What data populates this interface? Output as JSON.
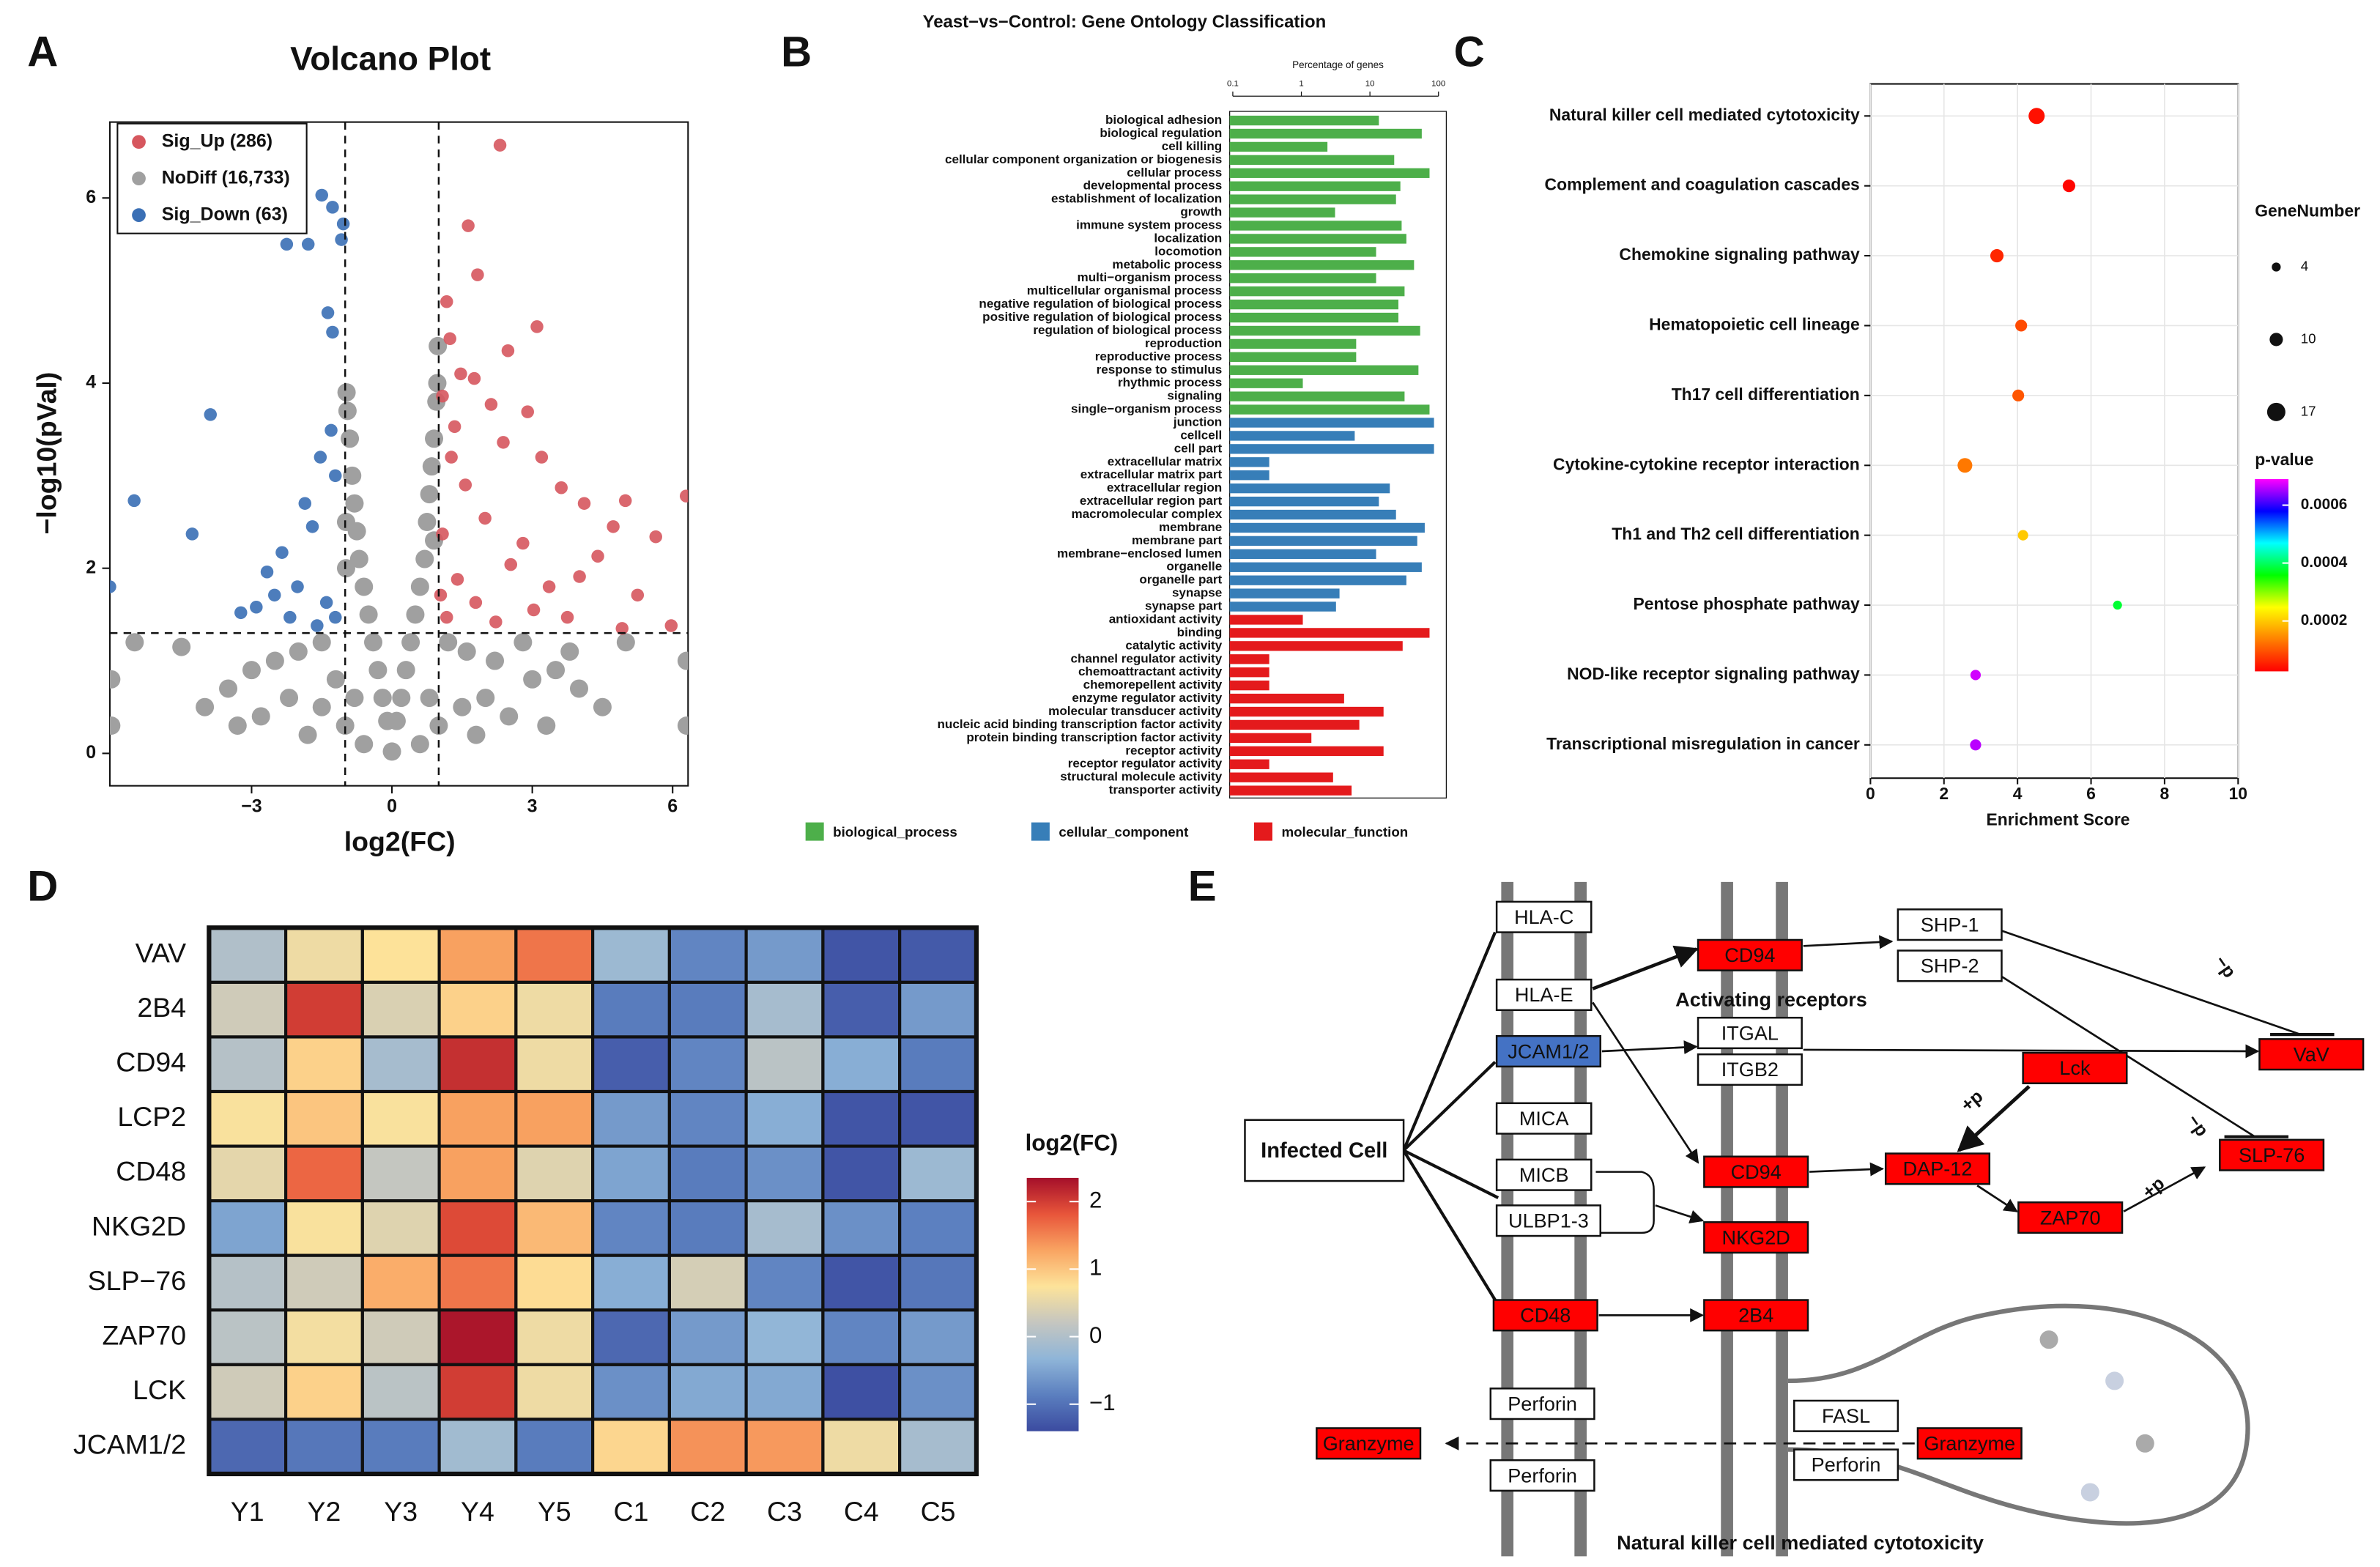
{
  "panel_labels": [
    "A",
    "B",
    "C",
    "D",
    "E"
  ],
  "chart_data": [
    {
      "type": "scatter",
      "title": "Volcano Plot",
      "xlabel": "log2(FC)",
      "ylabel": "−log10(pVal)",
      "xlim": [
        -6.03,
        6.33
      ],
      "ylim": [
        -0.35,
        6.82
      ],
      "xticks": [
        {
          "value": -3,
          "label": "−3"
        },
        0,
        3,
        6
      ],
      "yticks": [
        0,
        2,
        4,
        6
      ],
      "thresholds": {
        "x": [
          -1,
          1
        ],
        "y": 1.3
      },
      "legend": "top-left",
      "series": [
        {
          "name": "Sig_Up (286)",
          "color": "#d6575e",
          "x": [
            2.31,
            1.63,
            1.83,
            1.17,
            1.24,
            3.1,
            2.48,
            1.76,
            2.12,
            1.34,
            4.99,
            4.11,
            6.29,
            4.73,
            5.64,
            4.4,
            5.25,
            3.75,
            4.92,
            3.03,
            2.54,
            1.99,
            1.57,
            1.27,
            1.08,
            1.4,
            1.79,
            2.22,
            1.17,
            1.04,
            2.8,
            3.36,
            4.01,
            2.38,
            2.9,
            1.08,
            1.47,
            3.62,
            3.2,
            5.97
          ],
          "values": [
            6.57,
            5.7,
            5.17,
            4.88,
            4.48,
            4.61,
            4.35,
            4.05,
            3.77,
            3.53,
            2.73,
            2.7,
            2.78,
            2.45,
            2.34,
            2.13,
            1.71,
            1.47,
            1.35,
            1.55,
            2.04,
            2.54,
            2.9,
            3.2,
            2.37,
            1.88,
            1.63,
            1.42,
            1.47,
            1.71,
            2.27,
            1.8,
            1.91,
            3.36,
            3.69,
            3.86,
            4.1,
            2.87,
            3.2,
            1.38
          ]
        },
        {
          "name": "NoDiff (16,733)",
          "color": "#a0a0a0",
          "x": [
            -0.95,
            -0.9,
            -0.85,
            -0.8,
            -0.75,
            -0.7,
            -0.6,
            -0.5,
            -0.4,
            -0.3,
            -0.2,
            -0.1,
            0.1,
            0.2,
            0.3,
            0.4,
            0.5,
            0.6,
            0.7,
            0.75,
            0.8,
            0.85,
            0.9,
            0.95,
            0.98,
            0.97,
            -0.97,
            -0.98,
            -0.98,
            0.9,
            -3.5,
            -3.0,
            -2.5,
            -2.0,
            -1.5,
            -1.2,
            -1.5,
            -2.2,
            -2.8,
            -1.0,
            -0.6,
            0,
            0.6,
            1.0,
            1.5,
            2.0,
            2.5,
            3.0,
            3.5,
            4.0,
            4.5,
            2.2,
            1.6,
            1.2,
            2.8,
            3.8,
            5.0,
            -4.5,
            -5.5,
            -6.0,
            -6.0,
            6.3,
            6.3,
            -0.8,
            0.8,
            -1.8,
            1.8,
            3.3,
            -3.3,
            -4.0
          ],
          "values": [
            3.7,
            3.4,
            3.0,
            2.7,
            2.4,
            2.1,
            1.8,
            1.5,
            1.2,
            0.9,
            0.6,
            0.35,
            0.35,
            0.6,
            0.9,
            1.2,
            1.5,
            1.8,
            2.1,
            2.5,
            2.8,
            3.1,
            3.4,
            3.8,
            4.4,
            4.0,
            3.9,
            2.5,
            2.0,
            2.3,
            0.7,
            0.9,
            1.0,
            1.1,
            1.2,
            0.8,
            0.5,
            0.6,
            0.4,
            0.3,
            0.1,
            0.02,
            0.1,
            0.3,
            0.5,
            0.6,
            0.4,
            0.8,
            0.9,
            0.7,
            0.5,
            1.0,
            1.1,
            1.2,
            1.2,
            1.1,
            1.2,
            1.15,
            1.2,
            0.3,
            0.8,
            0.3,
            1.0,
            0.6,
            0.6,
            0.2,
            0.2,
            0.3,
            0.3,
            0.5
          ]
        },
        {
          "name": "Sig_Down (63)",
          "color": "#3a6fb5",
          "x": [
            -1.5,
            -1.27,
            -1.04,
            -2.25,
            -1.79,
            -1.08,
            -1.37,
            -1.27,
            -3.88,
            -5.51,
            -4.27,
            -6.03,
            -2.67,
            -2.35,
            -1.86,
            -1.53,
            -1.7,
            -2.02,
            -2.9,
            -3.23,
            -1.4,
            -1.21,
            -1.6,
            -2.51,
            -1.21,
            -1.3,
            -2.18
          ],
          "values": [
            6.03,
            5.9,
            5.72,
            5.5,
            5.5,
            5.55,
            4.76,
            4.55,
            3.66,
            2.73,
            2.37,
            1.8,
            1.96,
            2.17,
            2.7,
            3.2,
            2.45,
            1.8,
            1.58,
            1.52,
            1.63,
            1.47,
            1.38,
            1.71,
            3.0,
            3.49,
            1.47
          ]
        }
      ]
    },
    {
      "type": "bar",
      "title": "Yeast−vs−Control: Gene Ontology Classification",
      "xlabel": "Percentage of genes",
      "xscale": "log",
      "xlim": [
        0.09,
        130
      ],
      "xticks": [
        0.1,
        1,
        10,
        100
      ],
      "series": [
        {
          "name": "biological_process",
          "color": "#4daf4a",
          "categories": [
            "biological adhesion",
            "biological regulation",
            "cell killing",
            "cellular component organization or biogenesis",
            "cellular process",
            "developmental process",
            "establishment of localization",
            "growth",
            "immune system process",
            "localization",
            "locomotion",
            "metabolic process",
            "multi−organism process",
            "multicellular organismal process",
            "negative regulation of biological process",
            "positive regulation of biological process",
            "regulation of biological process",
            "reproduction",
            "reproductive process",
            "response to stimulus",
            "rhythmic process",
            "signaling",
            "single−organism process"
          ],
          "values": [
            13.5,
            57,
            2.4,
            22.6,
            74,
            27.8,
            24,
            3.1,
            29,
            34,
            12.3,
            44,
            12.3,
            32,
            26,
            26,
            54,
            6.3,
            6.3,
            51,
            1.05,
            32,
            74
          ]
        },
        {
          "name": "cellular_component",
          "color": "#377eb8",
          "categories": [
            "junction",
            "cellcell",
            "cell part",
            "extracellular matrix",
            "extracellular matrix part",
            "extracellular region",
            "extracellular region part",
            "macromolecular complex",
            "membrane",
            "membrane part",
            "membrane−enclosed lumen",
            "organelle",
            "organelle part",
            "synapse",
            "synapse part"
          ],
          "values": [
            86,
            6,
            86,
            0.34,
            0.34,
            19.5,
            13.5,
            24,
            63,
            49,
            12.3,
            57,
            34,
            3.6,
            3.2
          ]
        },
        {
          "name": "molecular_function",
          "color": "#e41a1c",
          "categories": [
            "antioxidant activity",
            "binding",
            "catalytic activity",
            "channel regulator activity",
            "chemoattractant activity",
            "chemorepellent activity",
            "enzyme regulator activity",
            "molecular transducer activity",
            "nucleic acid binding transcription factor activity",
            "protein binding transcription factor activity",
            "receptor activity",
            "receptor regulator activity",
            "structural molecule activity",
            "transporter activity"
          ],
          "values": [
            1.05,
            74,
            30,
            0.34,
            0.34,
            0.34,
            4.2,
            15.8,
            7,
            1.4,
            15.8,
            0.34,
            2.9,
            5.4
          ]
        }
      ]
    },
    {
      "type": "bubble",
      "xlabel": "Enrichment Score",
      "xlim": [
        0,
        10
      ],
      "xticks": [
        0,
        2,
        4,
        6,
        8,
        10
      ],
      "grid": true,
      "categories": [
        "Natural killer cell mediated cytotoxicity",
        "Complement and coagulation cascades",
        "Chemokine signaling pathway",
        "Hematopoietic cell lineage",
        "Th17 cell differentiation",
        "Cytokine-cytokine receptor interaction",
        "Th1 and Th2 cell differentiation",
        "Pentose phosphate pathway",
        "NOD-like receptor signaling pathway",
        "Transcriptional misregulation in cancer"
      ],
      "values": [
        4.52,
        5.4,
        3.44,
        4.1,
        4.02,
        2.57,
        4.15,
        6.72,
        2.86,
        2.86
      ],
      "sizes": [
        14,
        9,
        10,
        8,
        8,
        12,
        6,
        4,
        6,
        7
      ],
      "pvalues": [
        4e-05,
        3e-05,
        6e-05,
        9e-05,
        0.0001,
        0.00013,
        0.0002,
        0.00038,
        0.00067,
        0.00066
      ],
      "size_title": "GeneNumber",
      "size_legend": [
        4,
        10,
        17
      ],
      "color_title": "p-value",
      "clim": [
        2.6e-05,
        0.00069
      ],
      "cticks": [
        0.0002,
        0.0004,
        0.0006
      ],
      "colormap": [
        "#ff0000",
        "#ff8000",
        "#ffff00",
        "#00ff00",
        "#00ffff",
        "#0000ff",
        "#ff00ff"
      ]
    },
    {
      "type": "heatmap",
      "rows": [
        "VAV",
        "2B4",
        "CD94",
        "LCP2",
        "CD48",
        "NKG2D",
        "SLP−76",
        "ZAP70",
        "LCK",
        "JCAM1/2"
      ],
      "columns": [
        "Y1",
        "Y2",
        "Y3",
        "Y4",
        "Y5",
        "C1",
        "C2",
        "C3",
        "C4",
        "C5"
      ],
      "values": [
        [
          0.0,
          0.6,
          0.75,
          1.3,
          1.6,
          -0.2,
          -0.8,
          -0.6,
          -1.3,
          -1.25
        ],
        [
          0.3,
          2.0,
          0.4,
          0.9,
          0.6,
          -0.9,
          -0.9,
          -0.1,
          -1.2,
          -0.6
        ],
        [
          0.05,
          0.9,
          -0.1,
          2.1,
          0.6,
          -1.2,
          -0.8,
          0.1,
          -0.4,
          -0.9
        ],
        [
          0.7,
          1.0,
          0.7,
          1.3,
          1.3,
          -0.6,
          -0.8,
          -0.4,
          -1.3,
          -1.3
        ],
        [
          0.5,
          1.7,
          0.2,
          1.3,
          0.45,
          -0.5,
          -0.9,
          -0.7,
          -1.3,
          -0.2
        ],
        [
          -0.5,
          0.7,
          0.45,
          1.9,
          1.1,
          -0.8,
          -0.9,
          -0.1,
          -0.7,
          -0.85
        ],
        [
          0.05,
          0.3,
          1.2,
          1.6,
          0.8,
          -0.4,
          0.35,
          -0.8,
          -1.3,
          -0.95
        ],
        [
          0.1,
          0.65,
          0.3,
          2.3,
          0.6,
          -1.1,
          -0.6,
          -0.3,
          -0.8,
          -0.6
        ],
        [
          0.3,
          0.9,
          0.1,
          2.0,
          0.6,
          -0.7,
          -0.45,
          -0.45,
          -1.35,
          -0.7
        ],
        [
          -1.1,
          -0.95,
          -0.9,
          -0.15,
          -0.9,
          0.85,
          1.4,
          1.35,
          0.6,
          -0.1
        ]
      ],
      "color_title": "log2(FC)",
      "clim": [
        -1.4,
        2.35
      ],
      "cticks": [
        2,
        1,
        0,
        {
          "value": -1,
          "label": "−1"
        }
      ],
      "colormap": [
        "#3b4ba0",
        "#5b7fbf",
        "#8fb5d8",
        "#c5c6c0",
        "#fde39a",
        "#f9a462",
        "#e8553a",
        "#a50f2a"
      ]
    }
  ],
  "pathway": {
    "title": "Natural killer cell mediated cytotoxicity",
    "annotations": [
      "Activating receptors",
      "+p",
      "+p",
      "−p",
      "−p"
    ],
    "nodes": [
      {
        "label": "HLA-C",
        "color": "#ffffff"
      },
      {
        "label": "HLA-E",
        "color": "#ffffff"
      },
      {
        "label": "JCAM1/2",
        "color": "#4472c4"
      },
      {
        "label": "MICA",
        "color": "#ffffff"
      },
      {
        "label": "MICB",
        "color": "#ffffff"
      },
      {
        "label": "ULBP1-3",
        "color": "#ffffff"
      },
      {
        "label": "CD48",
        "color": "#ff0000"
      },
      {
        "label": "Perforin",
        "color": "#ffffff"
      },
      {
        "label": "Perforin",
        "color": "#ffffff"
      },
      {
        "label": "CD94",
        "color": "#ff0000"
      },
      {
        "label": "ITGAL",
        "color": "#ffffff"
      },
      {
        "label": "ITGB2",
        "color": "#ffffff"
      },
      {
        "label": "CD94",
        "color": "#ff0000"
      },
      {
        "label": "NKG2D",
        "color": "#ff0000"
      },
      {
        "label": "2B4",
        "color": "#ff0000"
      },
      {
        "label": "FASL",
        "color": "#ffffff"
      },
      {
        "label": "Perforin",
        "color": "#ffffff"
      },
      {
        "label": "Granzyme",
        "color": "#ff0000"
      },
      {
        "label": "Granzyme",
        "color": "#ff0000"
      },
      {
        "label": "SHP-1",
        "color": "#ffffff"
      },
      {
        "label": "SHP-2",
        "color": "#ffffff"
      },
      {
        "label": "Lck",
        "color": "#ff0000"
      },
      {
        "label": "DAP-12",
        "color": "#ff0000"
      },
      {
        "label": "ZAP70",
        "color": "#ff0000"
      },
      {
        "label": "VaV",
        "color": "#ff0000"
      },
      {
        "label": "SLP-76",
        "color": "#ff0000"
      },
      {
        "label": "Infected Cell",
        "color": "#ffffff"
      }
    ]
  }
}
